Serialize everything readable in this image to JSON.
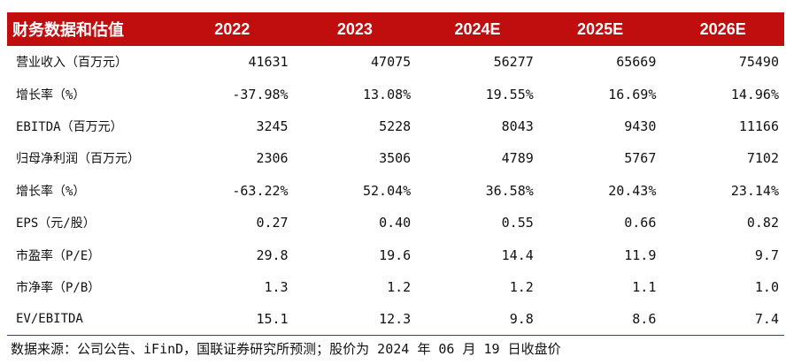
{
  "header": {
    "label": "财务数据和估值",
    "years": [
      "2022",
      "2023",
      "2024E",
      "2025E",
      "2026E"
    ]
  },
  "rows": [
    {
      "label": "营业收入（百万元）",
      "values": [
        "41631",
        "47075",
        "56277",
        "65669",
        "75490"
      ]
    },
    {
      "label": "增长率（%）",
      "values": [
        "-37.98%",
        "13.08%",
        "19.55%",
        "16.69%",
        "14.96%"
      ]
    },
    {
      "label": "EBITDA（百万元）",
      "values": [
        "3245",
        "5228",
        "8043",
        "9430",
        "11166"
      ]
    },
    {
      "label": "归母净利润（百万元）",
      "values": [
        "2306",
        "3506",
        "4789",
        "5767",
        "7102"
      ]
    },
    {
      "label": "增长率（%）",
      "values": [
        "-63.22%",
        "52.04%",
        "36.58%",
        "20.43%",
        "23.14%"
      ]
    },
    {
      "label": "EPS（元/股）",
      "values": [
        "0.27",
        "0.40",
        "0.55",
        "0.66",
        "0.82"
      ]
    },
    {
      "label": "市盈率（P/E）",
      "values": [
        "29.8",
        "19.6",
        "14.4",
        "11.9",
        "9.7"
      ]
    },
    {
      "label": "市净率（P/B）",
      "values": [
        "1.3",
        "1.2",
        "1.2",
        "1.1",
        "1.0"
      ]
    },
    {
      "label": "EV/EBITDA",
      "values": [
        "15.1",
        "12.3",
        "9.8",
        "8.6",
        "7.4"
      ]
    }
  ],
  "footer": {
    "source": "数据来源：公司公告、iFinD，国联证券研究所预测；股价为 2024 年 06 月 19 日收盘价"
  },
  "colors": {
    "header_bg": "#c00d0d",
    "header_text": "#ffffff",
    "body_text": "#111111"
  }
}
